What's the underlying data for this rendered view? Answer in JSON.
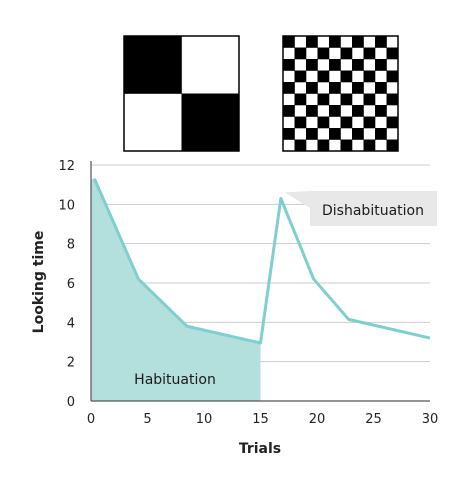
{
  "chart_data": {
    "type": "area",
    "title": "",
    "xlabel": "Trials",
    "ylabel": "Looking time",
    "xlim": [
      0,
      30
    ],
    "ylim": [
      0,
      12
    ],
    "xticks": [
      "0",
      "5",
      "10",
      "15",
      "20",
      "25",
      "30"
    ],
    "yticks": [
      "0",
      "2",
      "4",
      "6",
      "8",
      "10",
      "12"
    ],
    "grid": "horizontal",
    "series": [
      {
        "points": [
          [
            0.3,
            11.3
          ],
          [
            4.2,
            6.2
          ],
          [
            8.5,
            3.8
          ],
          [
            15,
            2.95
          ],
          [
            16.8,
            10.3
          ],
          [
            19.7,
            6.2
          ],
          [
            22.8,
            4.15
          ],
          [
            30,
            3.2
          ]
        ]
      }
    ],
    "shaded_region": {
      "x_from": 0,
      "x_to": 15
    },
    "annotations": {
      "habituation": "Habituation",
      "dishabituation": "Dishabituation"
    },
    "stimuli": [
      {
        "grid": 2,
        "first_black": true
      },
      {
        "grid": 10,
        "first_black": true
      }
    ],
    "colors": {
      "line": "#7fcfcf",
      "fill": "#b3dfdd",
      "grid": "#cccccc",
      "axis": "#555555",
      "callout": "#e8e8e8"
    }
  }
}
